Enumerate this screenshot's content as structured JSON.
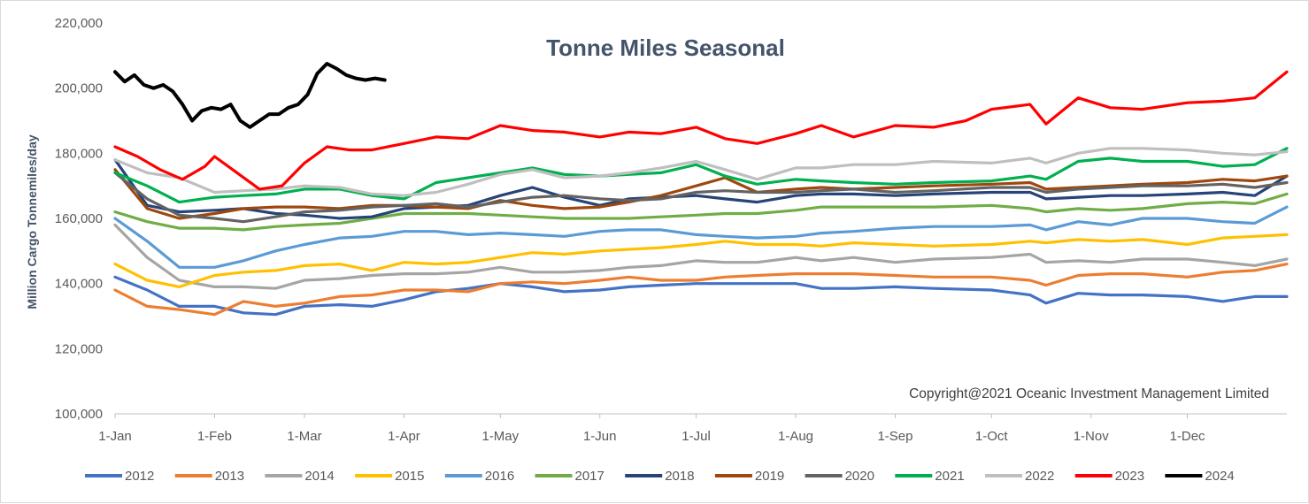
{
  "chart_data": {
    "type": "line",
    "title": "Tonne Miles Seasonal",
    "ylabel": "Million Cargo Tonnemiles/day",
    "xlabel": "",
    "annotation": "Copyright@2021 Oceanic Investment Management Limited",
    "ylim": [
      100000,
      220000
    ],
    "yticks": [
      100000,
      120000,
      140000,
      160000,
      180000,
      200000,
      220000
    ],
    "ytick_labels": [
      "100,000",
      "120,000",
      "140,000",
      "160,000",
      "180,000",
      "200,000",
      "220,000"
    ],
    "xlim_days": [
      0,
      365
    ],
    "x_ticks": [
      {
        "label": "1-Jan",
        "day": 0
      },
      {
        "label": "1-Feb",
        "day": 31
      },
      {
        "label": "1-Mar",
        "day": 59
      },
      {
        "label": "1-Apr",
        "day": 90
      },
      {
        "label": "1-May",
        "day": 120
      },
      {
        "label": "1-Jun",
        "day": 151
      },
      {
        "label": "1-Jul",
        "day": 181
      },
      {
        "label": "1-Aug",
        "day": 212
      },
      {
        "label": "1-Sep",
        "day": 243
      },
      {
        "label": "1-Oct",
        "day": 273
      },
      {
        "label": "1-Nov",
        "day": 304
      },
      {
        "label": "1-Dec",
        "day": 334
      }
    ],
    "grid": false,
    "legend_position": "bottom",
    "series": [
      {
        "name": "2012",
        "color": "#4472c4",
        "x": [
          0,
          10,
          20,
          31,
          40,
          50,
          59,
          70,
          80,
          90,
          100,
          110,
          120,
          130,
          140,
          151,
          160,
          170,
          181,
          190,
          200,
          212,
          220,
          230,
          243,
          255,
          273,
          285,
          290,
          300,
          310,
          320,
          334,
          345,
          355,
          365
        ],
        "y": [
          142000,
          138000,
          133000,
          133000,
          131000,
          130500,
          133000,
          133500,
          133000,
          135000,
          137500,
          138500,
          140000,
          139000,
          137500,
          138000,
          139000,
          139500,
          140000,
          140000,
          140000,
          140000,
          138500,
          138500,
          139000,
          138500,
          138000,
          136500,
          134000,
          137000,
          136500,
          136500,
          136000,
          134500,
          136000,
          136000
        ]
      },
      {
        "name": "2013",
        "color": "#ed7d31",
        "x": [
          0,
          10,
          20,
          31,
          40,
          50,
          59,
          70,
          80,
          90,
          100,
          110,
          120,
          130,
          140,
          151,
          160,
          170,
          181,
          190,
          200,
          212,
          220,
          230,
          243,
          255,
          273,
          285,
          290,
          300,
          310,
          320,
          334,
          345,
          355,
          365
        ],
        "y": [
          138000,
          133000,
          132000,
          130500,
          134500,
          133000,
          134000,
          136000,
          136500,
          138000,
          138000,
          137500,
          140000,
          140500,
          140000,
          141000,
          142000,
          141000,
          141000,
          142000,
          142500,
          143000,
          143000,
          143000,
          142500,
          142000,
          142000,
          141000,
          139500,
          142500,
          143000,
          143000,
          142000,
          143500,
          144000,
          146000
        ]
      },
      {
        "name": "2014",
        "color": "#a5a5a5",
        "x": [
          0,
          10,
          20,
          31,
          40,
          50,
          59,
          70,
          80,
          90,
          100,
          110,
          120,
          130,
          140,
          151,
          160,
          170,
          181,
          190,
          200,
          212,
          220,
          230,
          243,
          255,
          273,
          285,
          290,
          300,
          310,
          320,
          334,
          345,
          355,
          365
        ],
        "y": [
          158000,
          148000,
          141000,
          139000,
          139000,
          138500,
          141000,
          141500,
          142500,
          143000,
          143000,
          143500,
          145000,
          143500,
          143500,
          144000,
          145000,
          145500,
          147000,
          146500,
          146500,
          148000,
          147000,
          148000,
          146500,
          147500,
          148000,
          149000,
          146500,
          147000,
          146500,
          147500,
          147500,
          146500,
          145500,
          147500
        ]
      },
      {
        "name": "2015",
        "color": "#ffc000",
        "x": [
          0,
          10,
          20,
          31,
          40,
          50,
          59,
          70,
          80,
          90,
          100,
          110,
          120,
          130,
          140,
          151,
          160,
          170,
          181,
          190,
          200,
          212,
          220,
          230,
          243,
          255,
          273,
          285,
          290,
          300,
          310,
          320,
          334,
          345,
          355,
          365
        ],
        "y": [
          146000,
          141000,
          139000,
          142500,
          143500,
          144000,
          145500,
          146000,
          144000,
          146500,
          146000,
          146500,
          148000,
          149500,
          149000,
          150000,
          150500,
          151000,
          152000,
          153000,
          152000,
          152000,
          151500,
          152500,
          152000,
          151500,
          152000,
          153000,
          152500,
          153500,
          153000,
          153500,
          152000,
          154000,
          154500,
          155000
        ]
      },
      {
        "name": "2016",
        "color": "#5b9bd5",
        "x": [
          0,
          10,
          20,
          31,
          40,
          50,
          59,
          70,
          80,
          90,
          100,
          110,
          120,
          130,
          140,
          151,
          160,
          170,
          181,
          190,
          200,
          212,
          220,
          230,
          243,
          255,
          273,
          285,
          290,
          300,
          310,
          320,
          334,
          345,
          355,
          365
        ],
        "y": [
          160000,
          153000,
          145000,
          145000,
          147000,
          150000,
          152000,
          154000,
          154500,
          156000,
          156000,
          155000,
          155500,
          155000,
          154500,
          156000,
          156500,
          156500,
          155000,
          154500,
          154000,
          154500,
          155500,
          156000,
          157000,
          157500,
          157500,
          158000,
          156500,
          159000,
          158000,
          160000,
          160000,
          159000,
          158500,
          163500
        ]
      },
      {
        "name": "2017",
        "color": "#70ad47",
        "x": [
          0,
          10,
          20,
          31,
          40,
          50,
          59,
          70,
          80,
          90,
          100,
          110,
          120,
          130,
          140,
          151,
          160,
          170,
          181,
          190,
          200,
          212,
          220,
          230,
          243,
          255,
          273,
          285,
          290,
          300,
          310,
          320,
          334,
          345,
          355,
          365
        ],
        "y": [
          162000,
          159000,
          157000,
          157000,
          156500,
          157500,
          158000,
          158500,
          160000,
          161500,
          161500,
          161500,
          161000,
          160500,
          160000,
          160000,
          160000,
          160500,
          161000,
          161500,
          161500,
          162500,
          163500,
          163500,
          163500,
          163500,
          164000,
          163000,
          162000,
          163000,
          162500,
          163000,
          164500,
          165000,
          164500,
          167500
        ]
      },
      {
        "name": "2018",
        "color": "#264478",
        "x": [
          0,
          10,
          20,
          31,
          40,
          50,
          59,
          70,
          80,
          90,
          100,
          110,
          120,
          130,
          140,
          151,
          160,
          170,
          181,
          190,
          200,
          212,
          220,
          230,
          243,
          255,
          273,
          285,
          290,
          300,
          310,
          320,
          334,
          345,
          355,
          365
        ],
        "y": [
          178000,
          164000,
          162000,
          162500,
          163000,
          161500,
          161000,
          160000,
          160500,
          163000,
          163500,
          164000,
          167000,
          169500,
          166500,
          164000,
          166000,
          166500,
          167000,
          166000,
          165000,
          167000,
          167500,
          167500,
          167000,
          167500,
          168000,
          168000,
          166000,
          166500,
          167000,
          167000,
          167500,
          168000,
          167000,
          173000
        ]
      },
      {
        "name": "2019",
        "color": "#9e480e",
        "x": [
          0,
          10,
          20,
          31,
          40,
          50,
          59,
          70,
          80,
          90,
          100,
          110,
          120,
          130,
          140,
          151,
          160,
          170,
          181,
          190,
          200,
          212,
          220,
          230,
          243,
          255,
          273,
          285,
          290,
          300,
          310,
          320,
          334,
          345,
          355,
          365
        ],
        "y": [
          175000,
          163000,
          160000,
          161500,
          163000,
          163500,
          163500,
          163000,
          164000,
          164000,
          163500,
          163000,
          165500,
          164000,
          163000,
          163500,
          165000,
          167000,
          170000,
          172500,
          168000,
          169000,
          169500,
          169000,
          169500,
          170000,
          170500,
          171000,
          169000,
          169500,
          170000,
          170500,
          171000,
          172000,
          171500,
          173000
        ]
      },
      {
        "name": "2020",
        "color": "#636363",
        "x": [
          0,
          10,
          20,
          31,
          40,
          50,
          59,
          70,
          80,
          90,
          100,
          110,
          120,
          130,
          140,
          151,
          160,
          170,
          181,
          190,
          200,
          212,
          220,
          230,
          243,
          255,
          273,
          285,
          290,
          300,
          310,
          320,
          334,
          345,
          355,
          365
        ],
        "y": [
          174000,
          166000,
          161000,
          160000,
          159000,
          160500,
          162000,
          162500,
          163500,
          164000,
          164500,
          163500,
          165000,
          166500,
          167000,
          166000,
          165500,
          166000,
          168000,
          168500,
          168000,
          168000,
          168500,
          169000,
          168000,
          168500,
          169500,
          169500,
          168000,
          169000,
          169500,
          170000,
          170000,
          170500,
          169500,
          171000
        ]
      },
      {
        "name": "2021",
        "color": "#00b050",
        "x": [
          0,
          10,
          20,
          31,
          40,
          50,
          59,
          70,
          80,
          90,
          100,
          110,
          120,
          130,
          140,
          151,
          160,
          170,
          181,
          190,
          200,
          212,
          220,
          230,
          243,
          255,
          273,
          285,
          290,
          300,
          310,
          320,
          334,
          345,
          355,
          365
        ],
        "y": [
          174000,
          170000,
          165000,
          166500,
          167000,
          167500,
          169000,
          169000,
          167000,
          166000,
          171000,
          172500,
          174000,
          175500,
          173500,
          173000,
          173500,
          174000,
          176500,
          173000,
          170500,
          172000,
          171500,
          171000,
          170500,
          171000,
          171500,
          173000,
          172000,
          177500,
          178500,
          177500,
          177500,
          176000,
          176500,
          181500
        ]
      },
      {
        "name": "2022",
        "color": "#bfbfbf",
        "x": [
          0,
          10,
          20,
          31,
          40,
          50,
          59,
          70,
          80,
          90,
          100,
          110,
          120,
          130,
          140,
          151,
          160,
          170,
          181,
          190,
          200,
          212,
          220,
          230,
          243,
          255,
          273,
          285,
          290,
          300,
          310,
          320,
          334,
          345,
          355,
          365
        ],
        "y": [
          178000,
          174000,
          172500,
          168000,
          168500,
          169000,
          170000,
          169500,
          167500,
          167000,
          168000,
          170500,
          173500,
          175000,
          172500,
          173000,
          174000,
          175500,
          177500,
          175000,
          172000,
          175500,
          175500,
          176500,
          176500,
          177500,
          177000,
          178500,
          177000,
          180000,
          181500,
          181500,
          181000,
          180000,
          179500,
          180500
        ]
      },
      {
        "name": "2023",
        "color": "#ff0000",
        "x": [
          0,
          7,
          14,
          21,
          28,
          31,
          38,
          45,
          52,
          59,
          66,
          73,
          80,
          90,
          100,
          110,
          120,
          130,
          140,
          151,
          160,
          170,
          181,
          190,
          200,
          212,
          220,
          230,
          243,
          255,
          265,
          273,
          285,
          290,
          300,
          310,
          320,
          334,
          345,
          355,
          365
        ],
        "y": [
          182000,
          179000,
          175000,
          172000,
          176000,
          179000,
          174000,
          169000,
          170000,
          177000,
          182000,
          181000,
          181000,
          183000,
          185000,
          184500,
          188500,
          187000,
          186500,
          185000,
          186500,
          186000,
          188000,
          184500,
          183000,
          186000,
          188500,
          185000,
          188500,
          188000,
          190000,
          193500,
          195000,
          189000,
          197000,
          194000,
          193500,
          195500,
          196000,
          197000,
          205000
        ]
      },
      {
        "name": "2024",
        "color": "#000000",
        "x": [
          0,
          3,
          6,
          9,
          12,
          15,
          18,
          21,
          24,
          27,
          30,
          33,
          36,
          39,
          42,
          45,
          48,
          51,
          54,
          57,
          60,
          63,
          66,
          69,
          72,
          75,
          78,
          81,
          84
        ],
        "y": [
          205000,
          202000,
          204000,
          201000,
          200000,
          201000,
          199000,
          195000,
          190000,
          193000,
          194000,
          193500,
          195000,
          190000,
          188000,
          190000,
          192000,
          192000,
          194000,
          195000,
          198000,
          204500,
          207500,
          206000,
          204000,
          203000,
          202500,
          203000,
          202500
        ]
      }
    ]
  }
}
